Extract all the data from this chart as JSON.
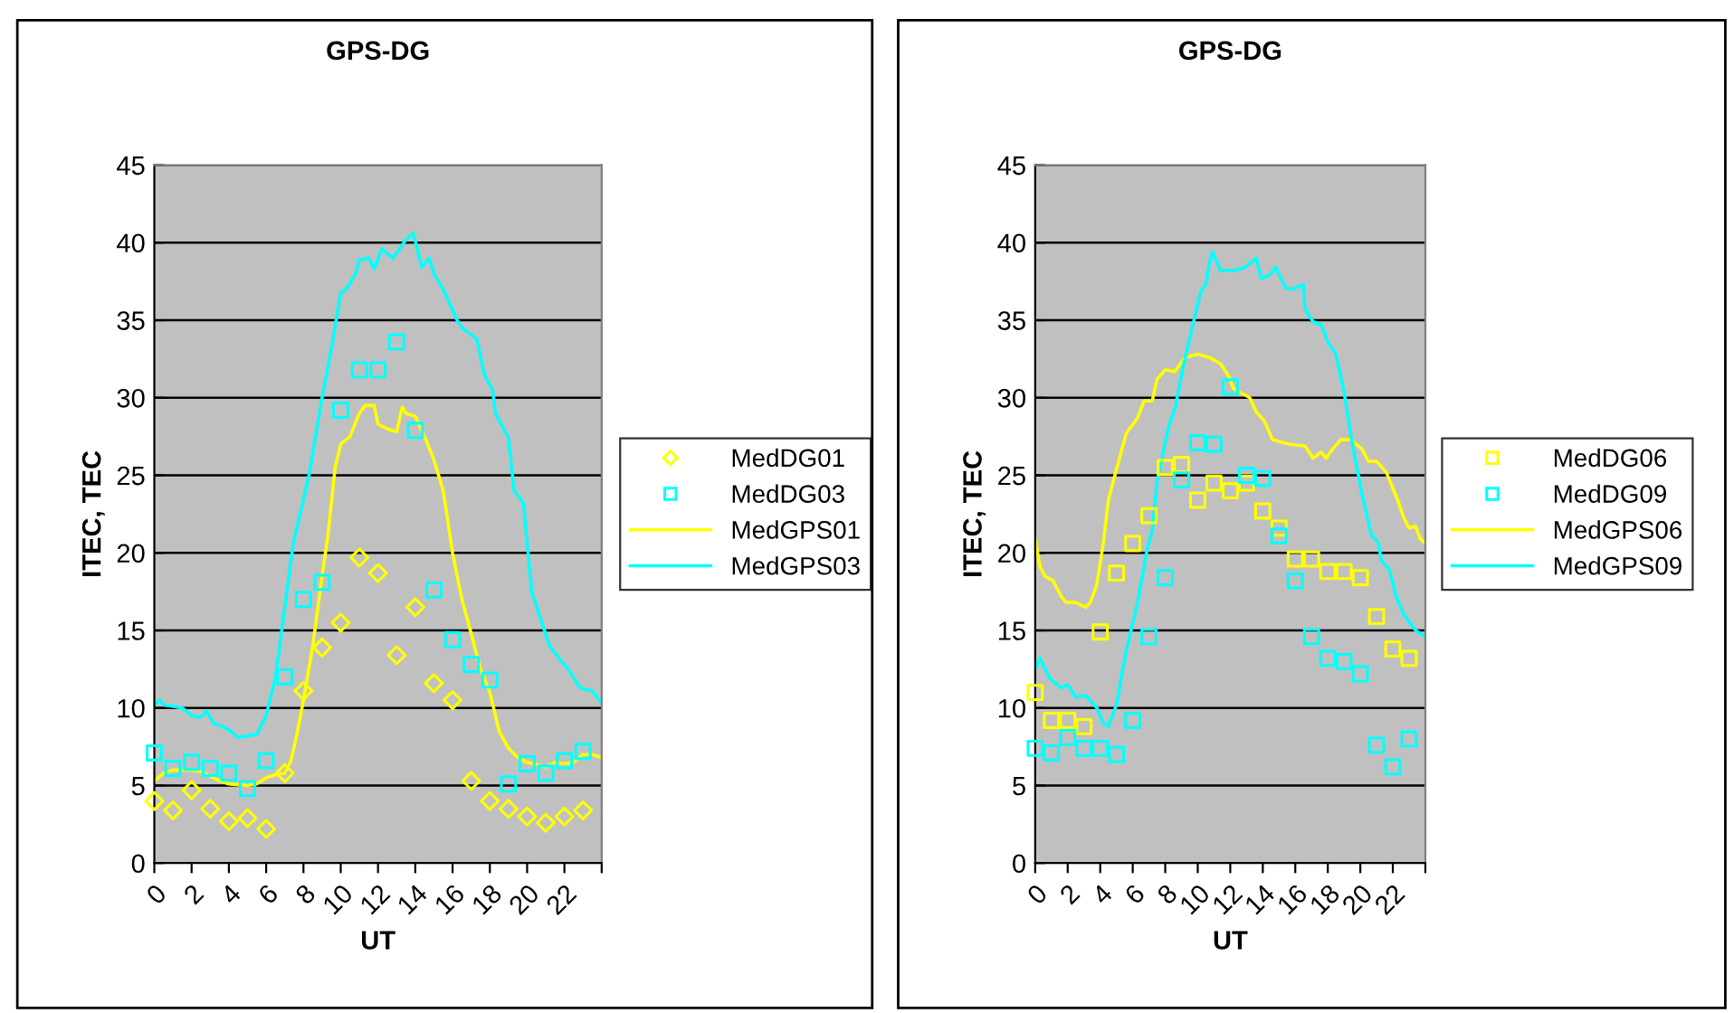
{
  "chart_data": [
    {
      "type": "line",
      "title": "GPS-DG",
      "xlabel": "UT",
      "ylabel": "ITEC, TEC",
      "xlim": [
        0,
        24
      ],
      "ylim": [
        0,
        45
      ],
      "xticks": [
        0,
        2,
        4,
        6,
        8,
        10,
        12,
        14,
        16,
        18,
        20,
        22,
        {
          "value": 24,
          "label": null
        }
      ],
      "yticks": [
        0,
        5,
        10,
        15,
        20,
        25,
        30,
        35,
        40,
        45
      ],
      "grid": "y",
      "legend": "right",
      "series": [
        {
          "name": "MedDG01",
          "type": "scatter",
          "marker": "diamond",
          "color": "#ffff00",
          "x": [
            0,
            1,
            2,
            3,
            4,
            5,
            6,
            7,
            8,
            9,
            10,
            11,
            12,
            13,
            14,
            15,
            16,
            17,
            18,
            19,
            20,
            21,
            22,
            23
          ],
          "values": [
            4.0,
            3.4,
            4.7,
            3.5,
            2.7,
            2.9,
            2.2,
            5.8,
            11.1,
            13.9,
            15.5,
            19.7,
            18.7,
            13.4,
            16.5,
            11.6,
            10.5,
            5.3,
            4.0,
            3.5,
            3.0,
            2.6,
            3.0,
            3.4
          ]
        },
        {
          "name": "MedDG03",
          "type": "scatter",
          "marker": "square",
          "color": "#00ffff",
          "x": [
            0,
            1,
            2,
            3,
            4,
            5,
            6,
            7,
            8,
            9,
            10,
            11,
            12,
            13,
            14,
            15,
            16,
            17,
            18,
            19,
            20,
            21,
            22,
            23
          ],
          "values": [
            7.1,
            6.1,
            6.5,
            6.1,
            5.8,
            4.8,
            6.6,
            12.0,
            17.0,
            18.1,
            29.2,
            31.8,
            31.8,
            33.6,
            27.9,
            17.6,
            14.4,
            12.8,
            11.8,
            5.1,
            6.4,
            5.8,
            6.6,
            7.2
          ]
        },
        {
          "name": "MedGPS01",
          "marker": "none",
          "color": "#ffff00",
          "x": [
            0,
            0.5,
            1,
            2,
            2.5,
            3,
            3.5,
            4,
            5,
            5.5,
            6,
            6.5,
            7,
            7.3,
            7.6,
            8,
            8.5,
            9,
            9.3,
            9.7,
            10,
            10.5,
            11,
            11.3,
            11.8,
            12,
            12.5,
            13,
            13.3,
            13.5,
            14,
            14.5,
            15,
            15.5,
            16,
            16.5,
            17,
            17.5,
            18,
            18.5,
            19,
            19.5,
            20,
            21,
            21.5,
            22,
            22.5,
            23,
            23.5,
            24
          ],
          "values": [
            5.3,
            5.8,
            6.0,
            6.0,
            5.9,
            5.6,
            5.3,
            5.1,
            5.0,
            5.1,
            5.5,
            5.7,
            5.8,
            6.5,
            8.0,
            10.5,
            14.0,
            18.5,
            21.0,
            25.5,
            27.0,
            27.5,
            29.0,
            29.5,
            29.5,
            28.3,
            28.0,
            27.8,
            29.4,
            29.0,
            28.8,
            27.5,
            26.0,
            24.0,
            20.0,
            17.0,
            14.8,
            12.5,
            11.0,
            8.5,
            7.4,
            6.8,
            6.5,
            6.2,
            6.5,
            6.4,
            6.5,
            7.0,
            7.0,
            6.8
          ]
        },
        {
          "name": "MedGPS03",
          "marker": "none",
          "color": "#00ffff",
          "x": [
            0,
            0.3,
            0.5,
            1,
            1.5,
            2,
            2.5,
            2.8,
            3.2,
            3.5,
            4,
            4.5,
            5,
            5.5,
            6,
            6.5,
            7,
            7.45,
            8.3,
            9.0,
            9.55,
            10,
            10.3,
            10.8,
            11,
            11.5,
            11.8,
            12.2,
            12.5,
            12.8,
            13.1,
            13.5,
            13.9,
            14.35,
            14.75,
            15,
            15.5,
            16.2,
            16.5,
            17.3,
            17.7,
            18.15,
            18.3,
            19.0,
            19.3,
            19.8,
            20.1,
            20.25,
            21.2,
            22.2,
            22.85,
            23.5,
            24
          ],
          "values": [
            10.2,
            10.5,
            10.2,
            10.1,
            10.0,
            9.5,
            9.4,
            9.8,
            9.0,
            8.9,
            8.6,
            8.1,
            8.2,
            8.3,
            9.5,
            12.0,
            16.5,
            20.6,
            25.0,
            30.0,
            33.5,
            36.8,
            37.0,
            38.0,
            38.9,
            39.0,
            38.3,
            39.6,
            39.3,
            39.0,
            39.5,
            40.2,
            40.6,
            38.4,
            39.0,
            38.0,
            37.0,
            35.1,
            34.5,
            33.8,
            31.5,
            30.5,
            29.0,
            27.4,
            24.0,
            23.2,
            19.4,
            17.5,
            14.0,
            12.5,
            11.3,
            11.1,
            10.3
          ]
        }
      ]
    },
    {
      "type": "line",
      "title": "GPS-DG",
      "xlabel": "UT",
      "ylabel": "ITEC, TEC",
      "xlim": [
        0,
        24
      ],
      "ylim": [
        0,
        45
      ],
      "xticks": [
        0,
        2,
        4,
        6,
        8,
        10,
        12,
        14,
        16,
        18,
        20,
        22,
        {
          "value": 24,
          "label": null
        }
      ],
      "yticks": [
        0,
        5,
        10,
        15,
        20,
        25,
        30,
        35,
        40,
        45
      ],
      "grid": "y",
      "legend": "right",
      "series": [
        {
          "name": "MedDG06",
          "type": "scatter",
          "marker": "square",
          "color": "#ffff00",
          "x": [
            0,
            1,
            2,
            3,
            4,
            5,
            6,
            7,
            8,
            9,
            10,
            11,
            12,
            13,
            14,
            15,
            16,
            17,
            18,
            19,
            20,
            21,
            22,
            23
          ],
          "values": [
            11.0,
            9.2,
            9.2,
            8.8,
            14.9,
            18.7,
            20.6,
            22.4,
            25.5,
            25.7,
            23.4,
            24.5,
            24.0,
            24.5,
            22.7,
            21.6,
            19.6,
            19.6,
            18.8,
            18.8,
            18.4,
            15.9,
            13.8,
            13.2
          ]
        },
        {
          "name": "MedDG09",
          "type": "scatter",
          "marker": "square",
          "color": "#00ffff",
          "x": [
            0,
            1,
            2,
            3,
            4,
            5,
            6,
            7,
            8,
            9,
            10,
            11,
            12,
            13,
            14,
            15,
            16,
            17,
            18,
            19,
            20,
            21,
            22,
            23
          ],
          "values": [
            7.4,
            7.1,
            8.1,
            7.4,
            7.4,
            7.0,
            9.2,
            14.6,
            18.4,
            24.7,
            27.1,
            27.0,
            30.7,
            25.0,
            24.8,
            21.1,
            18.2,
            14.6,
            13.2,
            13.0,
            12.2,
            7.6,
            6.2,
            8.0
          ]
        },
        {
          "name": "MedGPS06",
          "marker": "none",
          "color": "#ffff00",
          "x": [
            0,
            0.3,
            0.6,
            1.1,
            1.6,
            1.9,
            2.5,
            3.1,
            3.4,
            3.8,
            4.2,
            4.5,
            5.0,
            5.6,
            6.3,
            6.7,
            7.2,
            7.5,
            8.0,
            8.6,
            9.2,
            10.0,
            10.7,
            11.4,
            11.9,
            12.2,
            13.2,
            13.6,
            14.1,
            14.6,
            14.9,
            15.7,
            16.6,
            17.1,
            17.6,
            17.9,
            18.3,
            18.8,
            19.4,
            20.1,
            20.5,
            21.0,
            21.6,
            22.3,
            22.7,
            23.0,
            23.4,
            23.7,
            24
          ],
          "values": [
            20.9,
            19.1,
            18.5,
            18.2,
            17.2,
            16.8,
            16.8,
            16.5,
            16.8,
            18.0,
            20.7,
            23.4,
            25.4,
            27.7,
            28.7,
            29.8,
            29.8,
            31.2,
            31.8,
            31.7,
            32.6,
            32.8,
            32.6,
            32.2,
            31.4,
            30.6,
            30.0,
            29.1,
            28.5,
            27.3,
            27.2,
            27.0,
            26.9,
            26.1,
            26.5,
            26.1,
            26.7,
            27.3,
            27.3,
            26.7,
            25.9,
            25.9,
            25.2,
            23.4,
            22.2,
            21.6,
            21.7,
            20.9,
            20.6
          ]
        },
        {
          "name": "MedGPS09",
          "marker": "none",
          "color": "#00ffff",
          "x": [
            0,
            0.3,
            0.9,
            1.6,
            2.0,
            2.5,
            3.1,
            3.8,
            4.2,
            4.5,
            5.0,
            5.6,
            6.3,
            6.9,
            7.2,
            7.5,
            8.2,
            8.6,
            9.1,
            9.7,
            10.2,
            10.5,
            10.7,
            10.9,
            11.4,
            12.2,
            12.9,
            13.6,
            13.9,
            14.4,
            14.8,
            15.4,
            15.8,
            16.5,
            16.6,
            17.1,
            17.6,
            18.0,
            18.5,
            19.0,
            19.4,
            20.1,
            20.7,
            21.1,
            21.3,
            21.8,
            22.2,
            22.7,
            23.4,
            24
          ],
          "values": [
            12.5,
            13.2,
            11.9,
            11.3,
            11.5,
            10.7,
            10.8,
            10.0,
            9.0,
            8.8,
            10.2,
            13.7,
            16.8,
            20.3,
            21.4,
            24.6,
            28.1,
            29.3,
            32.0,
            34.7,
            36.9,
            37.3,
            38.6,
            39.4,
            38.2,
            38.2,
            38.4,
            39.0,
            37.7,
            37.9,
            38.4,
            37.1,
            37.0,
            37.3,
            35.7,
            34.9,
            34.7,
            33.6,
            32.8,
            30.4,
            27.7,
            23.8,
            21.1,
            20.7,
            19.5,
            18.9,
            17.2,
            16.0,
            15.0,
            14.6
          ]
        }
      ]
    }
  ]
}
